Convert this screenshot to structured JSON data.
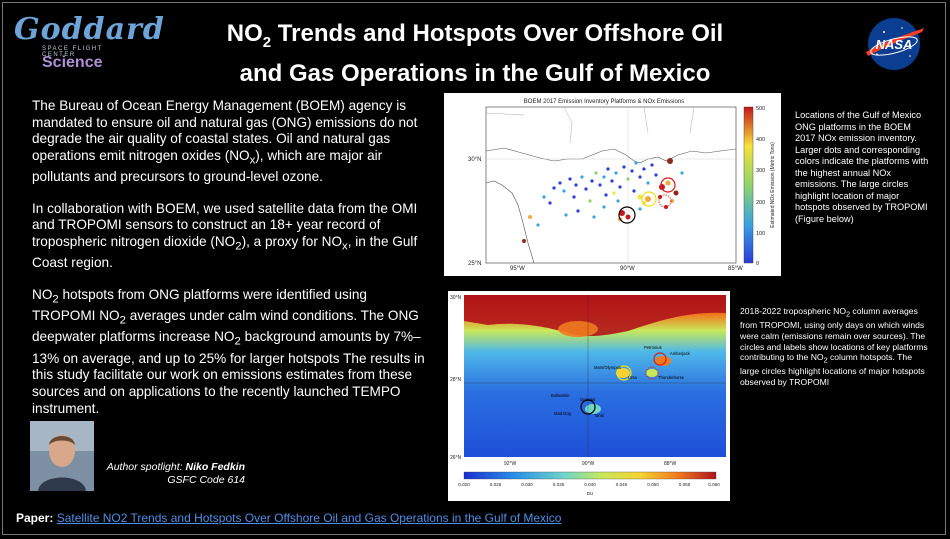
{
  "logo": {
    "goddard": "Goddard",
    "center": "SPACE FLIGHT CENTER",
    "science": "Science"
  },
  "title": {
    "line1_pre": "NO",
    "line1_sub": "2",
    "line1_post": " Trends and Hotspots Over Offshore Oil",
    "line2": "and Gas Operations in the Gulf of Mexico"
  },
  "nasa_label": "NASA",
  "body": {
    "p1_pre": "The Bureau of Ocean Energy Management (BOEM) agency is mandated to ensure oil and natural gas (ONG) emissions do not degrade the air quality of coastal states. Oil and natural gas operations emit nitrogen oxides (NO",
    "p1_sub": "x",
    "p1_post": "), which are major air pollutants and precursors to ground-level ozone.",
    "p2_a": "In collaboration with BOEM, we used satellite data from the OMI and TROPOMI sensors to construct an 18+ year record of tropospheric nitrogen dioxide (NO",
    "p2_sub1": "2",
    "p2_b": "), a proxy for NO",
    "p2_sub2": "x",
    "p2_c": ", in the Gulf Coast region.",
    "p3_a": "NO",
    "p3_sub1": "2",
    "p3_b": " hotspots from ONG platforms were identified using TROPOMI NO",
    "p3_sub2": "2",
    "p3_c": " averages under calm wind conditions. The ONG deepwater platforms increase NO",
    "p3_sub3": "2",
    "p3_d": " background amounts by 7%–13% on average, and up to 25% for larger hotspots The results in this study facilitate our work on emissions estimates from these sources and on applications to the recently launched TEMPO instrument."
  },
  "spotlight": {
    "label": "Author spotlight: ",
    "name": "Niko Fedkin",
    "code": "GSFC Code 614"
  },
  "figure1": {
    "title": "BOEM 2017 Emission Inventory Platforms & NOx Emissions",
    "lat_ticks": [
      "30°N",
      "25°N"
    ],
    "lon_ticks": [
      "95°W",
      "90°W",
      "85°W"
    ],
    "colorbar_ticks": [
      "500",
      "400",
      "300",
      "200",
      "100",
      "0"
    ],
    "colorbar_label": "Estimated NOx Emission (Metric Tons)",
    "colors": {
      "low": "#2b3bd9",
      "mid": "#f5e23a",
      "high": "#c4161c"
    }
  },
  "caption1": "Locations of the Gulf of Mexico ONG platforms in the BOEM 2017 NOx emission inventory. Larger dots and corresponding colors indicate the platforms with the highest annual NOx emissions. The large circles highlight location of major hotspots observed by TROPOMI (Figure below)",
  "figure2": {
    "lat_ticks": [
      "30°N",
      "28°N",
      "26°N"
    ],
    "lon_ticks": [
      "92°W",
      "90°W",
      "88°W"
    ],
    "colorbar_ticks": [
      "0.020",
      "0.025",
      "0.030",
      "0.035",
      "0.040",
      "0.045",
      "0.050",
      "0.055",
      "0.060"
    ],
    "colorbar_label": "DU",
    "labels": [
      "Amberjack",
      "Mars/Olympus",
      "Ursa",
      "Thunderhorse",
      "Petronius",
      "Bullwinkle",
      "Mad Dog",
      "Tahiti",
      "Genesis"
    ]
  },
  "caption2_pre": "2018-2022 tropospheric NO",
  "caption2_sub1": "2",
  "caption2_mid": " column averages from TROPOMI, using only days on which winds were calm (emissions remain over sources). The circles and labels show locations of key platforms contributing to the NO",
  "caption2_sub2": "2",
  "caption2_post": " column hotspots. The large circles highlight locations of major hotspots observed by TROPOMI",
  "paper": {
    "label": "Paper: ",
    "link": "Satellite NO2 Trends and Hotspots Over Offshore Oil and Gas Operations in the Gulf of Mexico"
  }
}
